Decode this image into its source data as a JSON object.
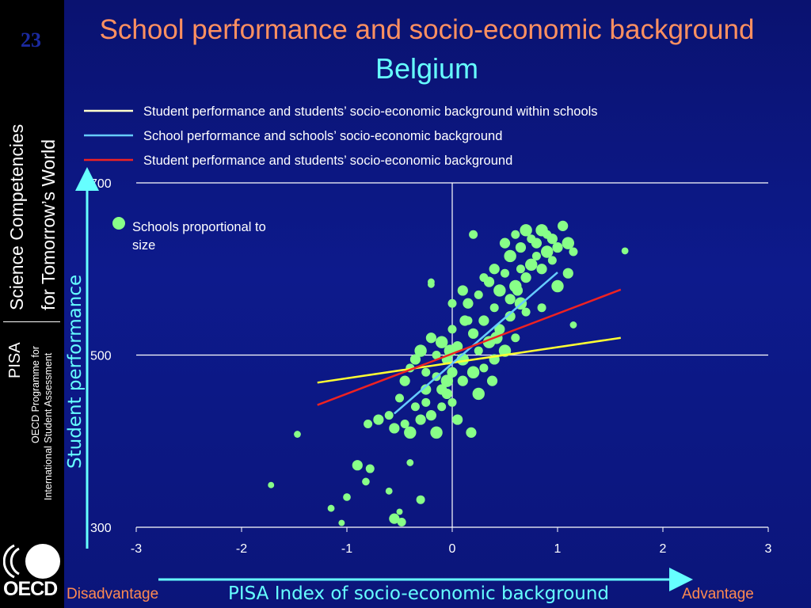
{
  "page_number": "23",
  "sidebar": {
    "line1": "Science Competencies",
    "line2": "for Tomorrow’s World",
    "pisa": "PISA",
    "program_line1": "OECD Programme for",
    "program_line2": "International Student Assessment",
    "logo_text": "OECD"
  },
  "chart_data": {
    "type": "scatter",
    "title": "School performance and socio-economic background",
    "subtitle": "Belgium",
    "xlabel": "PISA Index of socio-economic background",
    "ylabel": "Student performance",
    "x_left_label": "Disadvantage",
    "x_right_label": "Advantage",
    "xlim": [
      -3,
      3
    ],
    "ylim": [
      300,
      700
    ],
    "x_ticks": [
      -3,
      -2,
      -1,
      0,
      1,
      2,
      3
    ],
    "y_ticks": [
      300,
      500,
      700
    ],
    "grid": "horizontal at 300, 500, 700; vertical at 0",
    "size_note": "Schools proportional to size",
    "point_color": "#88ff88",
    "lines": [
      {
        "name": "Student performance and students’ socio-economic background within schools",
        "color": "#ffff33",
        "x": [
          -1.28,
          1.6
        ],
        "y": [
          468,
          520
        ]
      },
      {
        "name": "School performance and schools’ socio-economic background",
        "color": "#66ccff",
        "x": [
          -0.55,
          1.0
        ],
        "y": [
          432,
          596
        ]
      },
      {
        "name": "Student performance and students’ socio-economic background",
        "color": "#ee2222",
        "x": [
          -1.28,
          1.6
        ],
        "y": [
          442,
          576
        ]
      }
    ],
    "points": [
      [
        -1.47,
        408,
        1
      ],
      [
        -1.72,
        349,
        0.8
      ],
      [
        -1.15,
        322,
        1
      ],
      [
        -1.0,
        335,
        1.2
      ],
      [
        -1.05,
        305,
        0.8
      ],
      [
        -0.9,
        372,
        2
      ],
      [
        -0.82,
        353,
        1.2
      ],
      [
        -0.78,
        368,
        1.5
      ],
      [
        -0.6,
        342,
        1
      ],
      [
        -0.55,
        310,
        2
      ],
      [
        -0.48,
        306,
        1.5
      ],
      [
        -0.5,
        318,
        0.8
      ],
      [
        -0.4,
        375,
        1
      ],
      [
        -0.3,
        332,
        1.5
      ],
      [
        -0.2,
        582,
        1
      ],
      [
        -0.8,
        420,
        1.5
      ],
      [
        -0.7,
        425,
        2
      ],
      [
        -0.6,
        430,
        1.5
      ],
      [
        -0.55,
        415,
        2
      ],
      [
        -0.45,
        420,
        1.5
      ],
      [
        -0.4,
        410,
        2.5
      ],
      [
        -0.35,
        440,
        1.5
      ],
      [
        -0.3,
        425,
        2
      ],
      [
        -0.25,
        445,
        1.5
      ],
      [
        -0.2,
        430,
        2
      ],
      [
        -0.15,
        410,
        2.5
      ],
      [
        -0.1,
        440,
        1.5
      ],
      [
        -0.05,
        455,
        2
      ],
      [
        0.0,
        445,
        1.5
      ],
      [
        0.05,
        425,
        2
      ],
      [
        -0.5,
        450,
        1.5
      ],
      [
        -0.45,
        470,
        2
      ],
      [
        -0.4,
        485,
        1.5
      ],
      [
        -0.35,
        495,
        2
      ],
      [
        -0.3,
        505,
        2.5
      ],
      [
        -0.25,
        480,
        1.5
      ],
      [
        -0.2,
        520,
        2
      ],
      [
        -0.15,
        500,
        1.5
      ],
      [
        -0.1,
        515,
        2.5
      ],
      [
        -0.05,
        495,
        2
      ],
      [
        0.0,
        530,
        1.5
      ],
      [
        0.05,
        510,
        2
      ],
      [
        0.1,
        495,
        2.5
      ],
      [
        0.15,
        540,
        1.5
      ],
      [
        0.2,
        525,
        2
      ],
      [
        0.25,
        505,
        1.5
      ],
      [
        0.3,
        540,
        2
      ],
      [
        0.35,
        515,
        2.5
      ],
      [
        0.4,
        555,
        1.5
      ],
      [
        0.45,
        530,
        2
      ],
      [
        0.0,
        480,
        2
      ],
      [
        -0.05,
        470,
        2.5
      ],
      [
        -0.1,
        460,
        2
      ],
      [
        -0.15,
        475,
        1.5
      ],
      [
        0.1,
        470,
        2
      ],
      [
        0.2,
        480,
        2.5
      ],
      [
        0.3,
        485,
        1.5
      ],
      [
        0.4,
        495,
        2
      ],
      [
        0.5,
        505,
        2.5
      ],
      [
        0.6,
        520,
        1.5
      ],
      [
        0.15,
        560,
        2
      ],
      [
        0.25,
        570,
        1.5
      ],
      [
        0.35,
        585,
        2
      ],
      [
        0.45,
        575,
        2.5
      ],
      [
        0.5,
        595,
        1.5
      ],
      [
        0.55,
        565,
        2
      ],
      [
        0.6,
        580,
        2.5
      ],
      [
        0.65,
        600,
        1.5
      ],
      [
        0.7,
        590,
        2
      ],
      [
        0.75,
        605,
        2.5
      ],
      [
        0.8,
        615,
        1.5
      ],
      [
        0.85,
        600,
        2
      ],
      [
        0.9,
        620,
        2.5
      ],
      [
        0.95,
        610,
        1.5
      ],
      [
        1.0,
        625,
        2
      ],
      [
        0.5,
        630,
        2
      ],
      [
        0.55,
        615,
        2.5
      ],
      [
        0.6,
        640,
        1.5
      ],
      [
        0.65,
        625,
        2
      ],
      [
        0.7,
        645,
        2.5
      ],
      [
        0.75,
        635,
        1.5
      ],
      [
        0.8,
        630,
        2
      ],
      [
        0.85,
        645,
        2.5
      ],
      [
        0.9,
        640,
        1.5
      ],
      [
        0.95,
        635,
        2
      ],
      [
        1.05,
        650,
        2
      ],
      [
        1.1,
        630,
        2.5
      ],
      [
        1.15,
        620,
        1.5
      ],
      [
        1.1,
        595,
        2
      ],
      [
        1.0,
        580,
        2.5
      ],
      [
        0.2,
        640,
        1.5
      ],
      [
        0.4,
        600,
        2
      ],
      [
        0.65,
        560,
        2.5
      ],
      [
        0.85,
        555,
        1.5
      ],
      [
        1.15,
        535,
        1
      ],
      [
        1.64,
        621,
        1
      ],
      [
        0.18,
        410,
        2
      ],
      [
        -0.2,
        585,
        1
      ],
      [
        0.0,
        560,
        1.5
      ],
      [
        0.1,
        575,
        2
      ],
      [
        0.3,
        590,
        1.5
      ],
      [
        0.55,
        545,
        2
      ],
      [
        0.7,
        550,
        1.5
      ],
      [
        -0.25,
        460,
        2
      ],
      [
        0.25,
        455,
        2.5
      ],
      [
        0.38,
        470,
        2
      ],
      [
        0.42,
        520,
        2.5
      ],
      [
        0.12,
        540,
        2
      ],
      [
        -0.02,
        505,
        2.5
      ],
      [
        0.62,
        575,
        2
      ]
    ]
  }
}
